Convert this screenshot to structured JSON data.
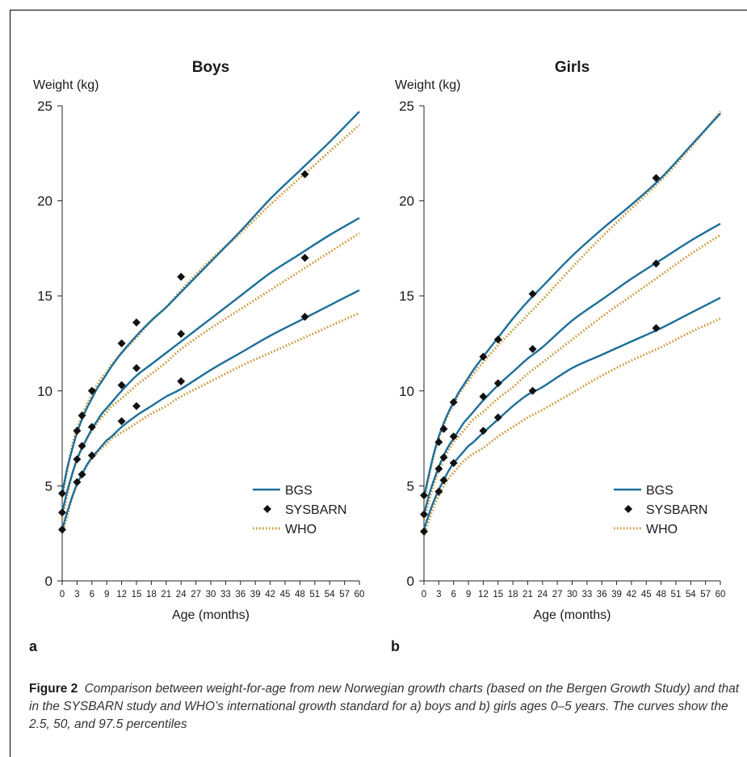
{
  "chart_data": [
    {
      "type": "line",
      "panel": "a",
      "title": "Boys",
      "ylabel": "Weight (kg)",
      "xlabel": "Age (months)",
      "xlim": [
        0,
        60
      ],
      "ylim": [
        0,
        25
      ],
      "xticks": [
        0,
        3,
        6,
        9,
        12,
        15,
        18,
        21,
        24,
        27,
        30,
        33,
        36,
        39,
        42,
        45,
        48,
        51,
        54,
        57,
        60
      ],
      "yticks": [
        0,
        5,
        10,
        15,
        20,
        25
      ],
      "legend_position": "bottom-right",
      "series": [
        {
          "name": "BGS",
          "color": "#1d6e99",
          "style": "solid",
          "percentile": "97.5",
          "x": [
            0,
            1,
            2,
            3,
            4,
            5,
            6,
            7,
            8,
            9,
            10,
            12,
            15,
            18,
            21,
            24,
            30,
            36,
            42,
            48,
            54,
            60
          ],
          "y": [
            4.6,
            5.9,
            6.9,
            7.8,
            8.5,
            9.1,
            9.6,
            10.1,
            10.5,
            10.9,
            11.3,
            12.0,
            12.9,
            13.7,
            14.4,
            15.2,
            16.8,
            18.4,
            20.1,
            21.6,
            23.1,
            24.7
          ]
        },
        {
          "name": "BGS",
          "color": "#1d6e99",
          "style": "solid",
          "percentile": "50",
          "x": [
            0,
            1,
            2,
            3,
            4,
            5,
            6,
            7,
            8,
            9,
            10,
            12,
            15,
            18,
            21,
            24,
            30,
            36,
            42,
            48,
            54,
            60
          ],
          "y": [
            3.6,
            4.7,
            5.6,
            6.4,
            7.0,
            7.5,
            8.0,
            8.4,
            8.8,
            9.1,
            9.4,
            10.0,
            10.8,
            11.4,
            12.0,
            12.6,
            13.8,
            15.0,
            16.2,
            17.2,
            18.2,
            19.1
          ]
        },
        {
          "name": "BGS",
          "color": "#1d6e99",
          "style": "solid",
          "percentile": "2.5",
          "x": [
            0,
            1,
            2,
            3,
            4,
            5,
            6,
            7,
            8,
            9,
            10,
            12,
            15,
            18,
            21,
            24,
            30,
            36,
            42,
            48,
            54,
            60
          ],
          "y": [
            2.7,
            3.6,
            4.4,
            5.1,
            5.6,
            6.1,
            6.5,
            6.8,
            7.1,
            7.4,
            7.6,
            8.1,
            8.7,
            9.2,
            9.7,
            10.1,
            11.1,
            12.0,
            12.9,
            13.7,
            14.5,
            15.3
          ]
        },
        {
          "name": "SYSBARN",
          "color": "#111111",
          "style": "marker",
          "x": [
            0,
            0,
            0,
            3,
            3,
            3,
            4,
            4,
            4,
            6,
            6,
            6,
            12,
            12,
            12,
            15,
            15,
            15,
            24,
            24,
            24,
            49,
            49,
            49
          ],
          "y": [
            4.6,
            3.6,
            2.7,
            7.9,
            6.4,
            5.2,
            8.7,
            7.1,
            5.6,
            10.0,
            8.1,
            6.6,
            12.5,
            10.3,
            8.4,
            13.6,
            11.2,
            9.2,
            16.0,
            13.0,
            10.5,
            21.4,
            17.0,
            13.9
          ]
        },
        {
          "name": "WHO",
          "color": "#c8912e",
          "style": "dotted",
          "percentile": "97.5",
          "x": [
            0,
            1,
            2,
            3,
            4,
            5,
            6,
            7,
            8,
            9,
            10,
            12,
            15,
            18,
            21,
            24,
            30,
            36,
            42,
            48,
            54,
            60
          ],
          "y": [
            4.4,
            5.8,
            7.1,
            8.0,
            8.7,
            9.3,
            9.8,
            10.3,
            10.7,
            11.0,
            11.4,
            12.0,
            12.8,
            13.7,
            14.4,
            15.3,
            16.9,
            18.3,
            19.8,
            21.2,
            22.6,
            24.0
          ]
        },
        {
          "name": "WHO",
          "color": "#c8912e",
          "style": "dotted",
          "percentile": "50",
          "x": [
            0,
            1,
            2,
            3,
            4,
            5,
            6,
            7,
            8,
            9,
            10,
            12,
            15,
            18,
            21,
            24,
            30,
            36,
            42,
            48,
            54,
            60
          ],
          "y": [
            3.3,
            4.5,
            5.6,
            6.4,
            7.0,
            7.5,
            7.9,
            8.3,
            8.6,
            8.9,
            9.2,
            9.6,
            10.3,
            10.9,
            11.5,
            12.2,
            13.3,
            14.3,
            15.3,
            16.3,
            17.3,
            18.3
          ]
        },
        {
          "name": "WHO",
          "color": "#c8912e",
          "style": "dotted",
          "percentile": "2.5",
          "x": [
            0,
            1,
            2,
            3,
            4,
            5,
            6,
            7,
            8,
            9,
            10,
            12,
            15,
            18,
            21,
            24,
            30,
            36,
            42,
            48,
            54,
            60
          ],
          "y": [
            2.5,
            3.4,
            4.4,
            5.1,
            5.6,
            6.1,
            6.4,
            6.7,
            7.0,
            7.2,
            7.5,
            7.8,
            8.3,
            8.8,
            9.2,
            9.7,
            10.5,
            11.3,
            12.0,
            12.7,
            13.4,
            14.1
          ]
        }
      ]
    },
    {
      "type": "line",
      "panel": "b",
      "title": "Girls",
      "ylabel": "Weight (kg)",
      "xlabel": "Age (months)",
      "xlim": [
        0,
        60
      ],
      "ylim": [
        0,
        25
      ],
      "xticks": [
        0,
        3,
        6,
        9,
        12,
        15,
        18,
        21,
        24,
        27,
        30,
        33,
        36,
        39,
        42,
        45,
        48,
        51,
        54,
        57,
        60
      ],
      "yticks": [
        0,
        5,
        10,
        15,
        20,
        25
      ],
      "legend_position": "bottom-right",
      "series": [
        {
          "name": "BGS",
          "color": "#1d6e99",
          "style": "solid",
          "percentile": "97.5",
          "x": [
            0,
            1,
            2,
            3,
            4,
            5,
            6,
            7,
            8,
            9,
            10,
            12,
            15,
            18,
            21,
            24,
            30,
            36,
            42,
            48,
            54,
            60
          ],
          "y": [
            4.4,
            5.6,
            6.7,
            7.6,
            8.3,
            8.9,
            9.4,
            9.9,
            10.3,
            10.7,
            11.1,
            11.8,
            12.8,
            13.8,
            14.7,
            15.5,
            17.1,
            18.5,
            19.8,
            21.2,
            22.9,
            24.6
          ]
        },
        {
          "name": "BGS",
          "color": "#1d6e99",
          "style": "solid",
          "percentile": "50",
          "x": [
            0,
            1,
            2,
            3,
            4,
            5,
            6,
            7,
            8,
            9,
            10,
            12,
            15,
            18,
            21,
            24,
            30,
            36,
            42,
            48,
            54,
            60
          ],
          "y": [
            3.5,
            4.5,
            5.3,
            6.0,
            6.6,
            7.1,
            7.5,
            7.9,
            8.3,
            8.6,
            8.9,
            9.5,
            10.3,
            11.0,
            11.7,
            12.3,
            13.7,
            14.8,
            15.9,
            16.9,
            17.9,
            18.8
          ]
        },
        {
          "name": "BGS",
          "color": "#1d6e99",
          "style": "solid",
          "percentile": "2.5",
          "x": [
            0,
            1,
            2,
            3,
            4,
            5,
            6,
            7,
            8,
            9,
            10,
            12,
            15,
            18,
            21,
            24,
            30,
            36,
            42,
            48,
            54,
            60
          ],
          "y": [
            2.7,
            3.5,
            4.2,
            4.8,
            5.3,
            5.8,
            6.2,
            6.5,
            6.8,
            7.1,
            7.3,
            7.8,
            8.5,
            9.2,
            9.8,
            10.2,
            11.2,
            11.9,
            12.6,
            13.3,
            14.1,
            14.9
          ]
        },
        {
          "name": "SYSBARN",
          "color": "#111111",
          "style": "marker",
          "x": [
            0,
            0,
            0,
            3,
            3,
            3,
            4,
            4,
            4,
            6,
            6,
            6,
            12,
            12,
            12,
            15,
            15,
            15,
            22,
            22,
            22,
            47,
            47,
            47
          ],
          "y": [
            4.5,
            3.5,
            2.6,
            7.3,
            5.9,
            4.7,
            8.0,
            6.5,
            5.3,
            9.4,
            7.6,
            6.2,
            11.8,
            9.7,
            7.9,
            12.7,
            10.4,
            8.6,
            15.1,
            12.2,
            10.0,
            21.2,
            16.7,
            13.3
          ]
        },
        {
          "name": "WHO",
          "color": "#c8912e",
          "style": "dotted",
          "percentile": "97.5",
          "x": [
            0,
            1,
            2,
            3,
            4,
            5,
            6,
            7,
            8,
            9,
            10,
            12,
            15,
            18,
            21,
            24,
            30,
            36,
            42,
            48,
            54,
            60
          ],
          "y": [
            4.2,
            5.5,
            6.6,
            7.5,
            8.2,
            8.8,
            9.3,
            9.8,
            10.2,
            10.5,
            10.9,
            11.5,
            12.4,
            13.2,
            14.0,
            14.8,
            16.5,
            18.1,
            19.6,
            21.1,
            22.8,
            24.7
          ]
        },
        {
          "name": "WHO",
          "color": "#c8912e",
          "style": "dotted",
          "percentile": "50",
          "x": [
            0,
            1,
            2,
            3,
            4,
            5,
            6,
            7,
            8,
            9,
            10,
            12,
            15,
            18,
            21,
            24,
            30,
            36,
            42,
            48,
            54,
            60
          ],
          "y": [
            3.2,
            4.2,
            5.1,
            5.8,
            6.4,
            6.9,
            7.3,
            7.6,
            7.9,
            8.2,
            8.5,
            8.9,
            9.6,
            10.2,
            10.9,
            11.5,
            12.7,
            13.9,
            15.0,
            16.1,
            17.2,
            18.2
          ]
        },
        {
          "name": "WHO",
          "color": "#c8912e",
          "style": "dotted",
          "percentile": "2.5",
          "x": [
            0,
            1,
            2,
            3,
            4,
            5,
            6,
            7,
            8,
            9,
            10,
            12,
            15,
            18,
            21,
            24,
            30,
            36,
            42,
            48,
            54,
            60
          ],
          "y": [
            2.4,
            3.2,
            3.9,
            4.5,
            5.0,
            5.4,
            5.7,
            6.0,
            6.3,
            6.5,
            6.7,
            7.0,
            7.6,
            8.1,
            8.6,
            9.0,
            9.9,
            10.8,
            11.6,
            12.3,
            13.1,
            13.8
          ]
        }
      ]
    }
  ],
  "legend": [
    "BGS",
    "SYSBARN",
    "WHO"
  ],
  "panel_letters": [
    "a",
    "b"
  ],
  "caption": {
    "label": "Figure 2",
    "text": "Comparison between weight-for-age from new Norwegian growth charts (based on the Bergen Growth Study) and that in the SYSBARN study and WHO’s international growth standard for a) boys and b) girls ages 0–5 years. The curves show the 2.5, 50, and 97.5 percentiles"
  }
}
